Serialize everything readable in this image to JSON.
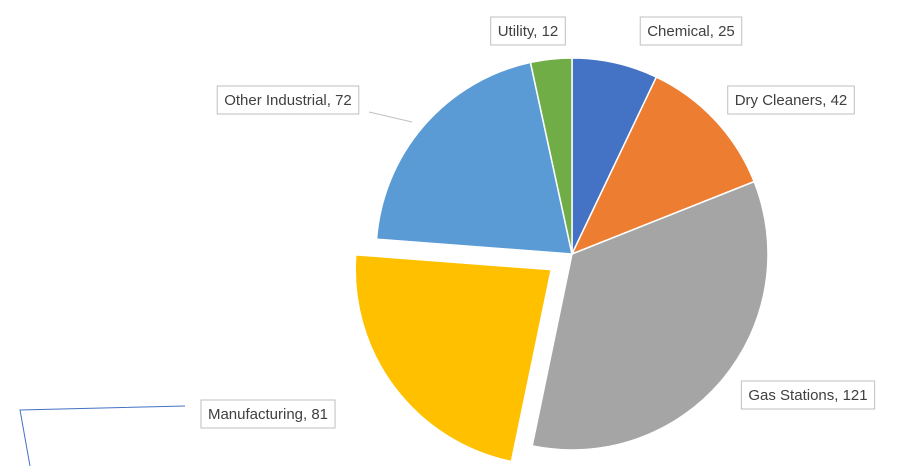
{
  "chart_data": {
    "type": "pie",
    "values": [
      25,
      42,
      121,
      81,
      72,
      12
    ],
    "value_labels": [
      "Chemical, 25",
      "Dry Cleaners, 42",
      "Gas Stations, 121",
      "Manufacturing, 81",
      "Other Industrial, 72",
      "Utility, 12"
    ],
    "colors": [
      "#4472c4",
      "#ed7d31",
      "#a5a5a5",
      "#ffc000",
      "#5b9bd5",
      "#70ad47"
    ],
    "exploded": [
      false,
      false,
      false,
      true,
      false,
      false
    ]
  }
}
